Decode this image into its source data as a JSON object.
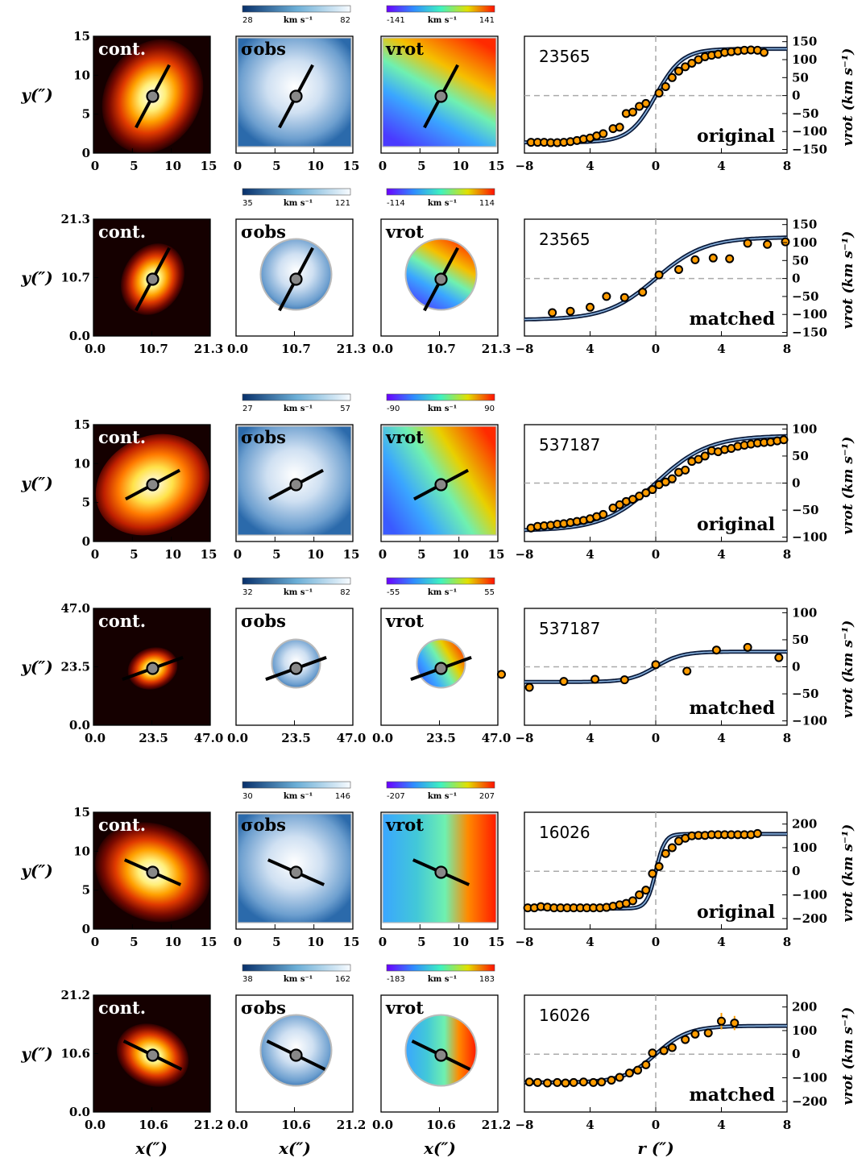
{
  "chart_data": [
    {
      "type": "scatter",
      "galaxy_id": "23565",
      "state": "original",
      "maps": {
        "continuum_label": "cont.",
        "dispersion_label": "σobs",
        "velocity_label": "vrot",
        "ticks": [
          "0",
          "5",
          "10",
          "15"
        ],
        "y_ticks": [
          "0",
          "5",
          "10",
          "15"
        ],
        "extent": [
          0,
          15
        ],
        "ylabel": "y(″)",
        "sigma_cbar": {
          "min": "28",
          "max": "82",
          "unit": "km s⁻¹"
        },
        "vrot_cbar": {
          "min": "-141",
          "max": "141",
          "unit": "km s⁻¹"
        }
      },
      "rotation_curve": {
        "xlim": [
          -8,
          8
        ],
        "x_ticks": [
          "−8",
          "4",
          "0",
          "4",
          "8"
        ],
        "ylim": [
          -160,
          165
        ],
        "y_ticks": [
          {
            "v": 150,
            "t": "150"
          },
          {
            "v": 100,
            "t": "100"
          },
          {
            "v": 50,
            "t": "50"
          },
          {
            "v": 0,
            "t": "0"
          },
          {
            "v": -50,
            "t": "−50"
          },
          {
            "v": -100,
            "t": "−100"
          },
          {
            "v": -150,
            "t": "−150"
          }
        ],
        "ylabel": "vrot (km s⁻¹)",
        "model_vmax": 130,
        "model_scale": 1.6,
        "points": [
          [
            -7.6,
            -130
          ],
          [
            -7.2,
            -130
          ],
          [
            -6.8,
            -130
          ],
          [
            -6.4,
            -131
          ],
          [
            -6.0,
            -131
          ],
          [
            -5.6,
            -130
          ],
          [
            -5.2,
            -128
          ],
          [
            -4.8,
            -125
          ],
          [
            -4.4,
            -121
          ],
          [
            -4.0,
            -118
          ],
          [
            -3.6,
            -112
          ],
          [
            -3.2,
            -106
          ],
          [
            -2.6,
            -92
          ],
          [
            -2.2,
            -88
          ],
          [
            -1.8,
            -50
          ],
          [
            -1.4,
            -46
          ],
          [
            -1.0,
            -30
          ],
          [
            -0.6,
            -22
          ],
          [
            0.2,
            7
          ],
          [
            0.6,
            25
          ],
          [
            1.0,
            50
          ],
          [
            1.4,
            68
          ],
          [
            1.8,
            80
          ],
          [
            2.2,
            90
          ],
          [
            2.6,
            100
          ],
          [
            3.0,
            108
          ],
          [
            3.4,
            112
          ],
          [
            3.8,
            115
          ],
          [
            4.2,
            120
          ],
          [
            4.6,
            122
          ],
          [
            5.0,
            124
          ],
          [
            5.4,
            126
          ],
          [
            5.8,
            127
          ],
          [
            6.2,
            126
          ],
          [
            6.6,
            120
          ]
        ]
      }
    },
    {
      "type": "scatter",
      "galaxy_id": "23565",
      "state": "matched",
      "maps": {
        "continuum_label": "cont.",
        "dispersion_label": "σobs",
        "velocity_label": "vrot",
        "ticks": [
          "0.0",
          "10.7",
          "21.3"
        ],
        "y_ticks": [
          "0.0",
          "10.7",
          "21.3"
        ],
        "extent": [
          0,
          21.3
        ],
        "ylabel": "y(″)",
        "sigma_cbar": {
          "min": "35",
          "max": "121",
          "unit": "km s⁻¹"
        },
        "vrot_cbar": {
          "min": "-114",
          "max": "114",
          "unit": "km s⁻¹"
        }
      },
      "rotation_curve": {
        "xlim": [
          -8,
          8
        ],
        "x_ticks": [
          "−8",
          "4",
          "0",
          "4",
          "8"
        ],
        "ylim": [
          -160,
          165
        ],
        "y_ticks": [
          {
            "v": 150,
            "t": "150"
          },
          {
            "v": 100,
            "t": "100"
          },
          {
            "v": 50,
            "t": "50"
          },
          {
            "v": 0,
            "t": "0"
          },
          {
            "v": -50,
            "t": "−50"
          },
          {
            "v": -100,
            "t": "−100"
          },
          {
            "v": -150,
            "t": "−150"
          }
        ],
        "ylabel": "vrot (km s⁻¹)",
        "model_vmax": 115,
        "model_scale": 3.0,
        "points": [
          [
            -6.3,
            -95
          ],
          [
            -5.2,
            -91
          ],
          [
            -4.0,
            -80
          ],
          [
            -3.0,
            -50
          ],
          [
            -1.9,
            -53
          ],
          [
            -0.8,
            -38
          ],
          [
            0.2,
            10
          ],
          [
            1.4,
            25
          ],
          [
            2.4,
            52
          ],
          [
            3.5,
            57
          ],
          [
            4.5,
            55
          ],
          [
            5.6,
            98
          ],
          [
            6.8,
            95
          ],
          [
            7.9,
            102
          ]
        ]
      }
    },
    {
      "type": "scatter",
      "galaxy_id": "537187",
      "state": "original",
      "maps": {
        "continuum_label": "cont.",
        "dispersion_label": "σobs",
        "velocity_label": "vrot",
        "ticks": [
          "0",
          "5",
          "10",
          "15"
        ],
        "y_ticks": [
          "0",
          "5",
          "10",
          "15"
        ],
        "extent": [
          0,
          15
        ],
        "ylabel": "y(″)",
        "sigma_cbar": {
          "min": "27",
          "max": "57",
          "unit": "km s⁻¹"
        },
        "vrot_cbar": {
          "min": "-90",
          "max": "90",
          "unit": "km s⁻¹"
        }
      },
      "rotation_curve": {
        "xlim": [
          -8,
          8
        ],
        "x_ticks": [
          "−8",
          "4",
          "0",
          "4",
          "8"
        ],
        "ylim": [
          -108,
          108
        ],
        "y_ticks": [
          {
            "v": 100,
            "t": "100"
          },
          {
            "v": 50,
            "t": "50"
          },
          {
            "v": 0,
            "t": "0"
          },
          {
            "v": -50,
            "t": "−50"
          },
          {
            "v": -100,
            "t": "−100"
          }
        ],
        "ylabel": "vrot (km s⁻¹)",
        "model_vmax": 88,
        "model_scale": 3.2,
        "points": [
          [
            -7.6,
            -83
          ],
          [
            -7.2,
            -80
          ],
          [
            -6.8,
            -79
          ],
          [
            -6.4,
            -78
          ],
          [
            -6.0,
            -76
          ],
          [
            -5.6,
            -75
          ],
          [
            -5.2,
            -73
          ],
          [
            -4.8,
            -71
          ],
          [
            -4.4,
            -69
          ],
          [
            -4.0,
            -66
          ],
          [
            -3.6,
            -62
          ],
          [
            -3.2,
            -58
          ],
          [
            -2.6,
            -46
          ],
          [
            -2.2,
            -40
          ],
          [
            -1.8,
            -34
          ],
          [
            -1.4,
            -30
          ],
          [
            -1.0,
            -24
          ],
          [
            -0.6,
            -18
          ],
          [
            -0.2,
            -12
          ],
          [
            0.2,
            -3
          ],
          [
            0.6,
            2
          ],
          [
            1.0,
            8
          ],
          [
            1.4,
            20
          ],
          [
            1.8,
            24
          ],
          [
            2.2,
            40
          ],
          [
            2.6,
            44
          ],
          [
            3.0,
            50
          ],
          [
            3.4,
            60
          ],
          [
            3.8,
            58
          ],
          [
            4.2,
            62
          ],
          [
            4.6,
            64
          ],
          [
            5.0,
            68
          ],
          [
            5.4,
            70
          ],
          [
            5.8,
            72
          ],
          [
            6.2,
            74
          ],
          [
            6.6,
            75
          ],
          [
            7.0,
            76
          ],
          [
            7.4,
            78
          ],
          [
            7.8,
            80
          ]
        ]
      }
    },
    {
      "type": "scatter",
      "galaxy_id": "537187",
      "state": "matched",
      "maps": {
        "continuum_label": "cont.",
        "dispersion_label": "σobs",
        "velocity_label": "vrot",
        "ticks": [
          "0.0",
          "23.5",
          "47.0"
        ],
        "y_ticks": [
          "0.0",
          "23.5",
          "47.0"
        ],
        "extent": [
          0,
          47.0
        ],
        "ylabel": "y(″)",
        "sigma_cbar": {
          "min": "32",
          "max": "82",
          "unit": "km s⁻¹"
        },
        "vrot_cbar": {
          "min": "-55",
          "max": "55",
          "unit": "km s⁻¹"
        }
      },
      "rotation_curve": {
        "xlim": [
          -8,
          8
        ],
        "x_ticks": [
          "−8",
          "4",
          "0",
          "4",
          "8"
        ],
        "ylim": [
          -108,
          108
        ],
        "y_ticks": [
          {
            "v": 100,
            "t": "100"
          },
          {
            "v": 50,
            "t": "50"
          },
          {
            "v": 0,
            "t": "0"
          },
          {
            "v": -50,
            "t": "−50"
          },
          {
            "v": -100,
            "t": "−100"
          }
        ],
        "ylabel": "vrot (km s⁻¹)",
        "model_vmax": 28,
        "model_scale": 1.6,
        "points": [
          [
            -9.4,
            -14
          ],
          [
            -7.7,
            -38
          ],
          [
            -5.6,
            -27
          ],
          [
            -3.7,
            -23
          ],
          [
            -1.9,
            -24
          ],
          [
            0.0,
            4
          ],
          [
            1.9,
            -8
          ],
          [
            3.7,
            31
          ],
          [
            5.6,
            36
          ],
          [
            7.5,
            17
          ]
        ]
      }
    },
    {
      "type": "scatter",
      "galaxy_id": "16026",
      "state": "original",
      "maps": {
        "continuum_label": "cont.",
        "dispersion_label": "σobs",
        "velocity_label": "vrot",
        "ticks": [
          "0",
          "5",
          "10",
          "15"
        ],
        "y_ticks": [
          "0",
          "5",
          "10",
          "15"
        ],
        "extent": [
          0,
          15
        ],
        "ylabel": "y(″)",
        "sigma_cbar": {
          "min": "30",
          "max": "146",
          "unit": "km s⁻¹"
        },
        "vrot_cbar": {
          "min": "-207",
          "max": "207",
          "unit": "km s⁻¹"
        }
      },
      "rotation_curve": {
        "xlim": [
          -8,
          8
        ],
        "x_ticks": [
          "−8",
          "4",
          "0",
          "4",
          "8"
        ],
        "ylim": [
          -245,
          250
        ],
        "y_ticks": [
          {
            "v": 200,
            "t": "200"
          },
          {
            "v": 100,
            "t": "100"
          },
          {
            "v": 0,
            "t": "0"
          },
          {
            "v": -100,
            "t": "−100"
          },
          {
            "v": -200,
            "t": "−200"
          }
        ],
        "ylabel": "vrot (km s⁻¹)",
        "model_vmax": 158,
        "model_scale": 0.55,
        "points": [
          [
            -7.8,
            -155
          ],
          [
            -7.4,
            -155
          ],
          [
            -7.0,
            -150
          ],
          [
            -6.6,
            -152
          ],
          [
            -6.2,
            -155
          ],
          [
            -5.8,
            -155
          ],
          [
            -5.4,
            -155
          ],
          [
            -5.0,
            -155
          ],
          [
            -4.6,
            -155
          ],
          [
            -4.2,
            -155
          ],
          [
            -3.8,
            -155
          ],
          [
            -3.4,
            -155
          ],
          [
            -3.0,
            -153
          ],
          [
            -2.6,
            -148
          ],
          [
            -2.2,
            -142
          ],
          [
            -1.8,
            -136
          ],
          [
            -1.4,
            -125
          ],
          [
            -1.0,
            -100
          ],
          [
            -0.6,
            -80
          ],
          [
            -0.2,
            -10
          ],
          [
            0.2,
            20
          ],
          [
            0.6,
            75
          ],
          [
            1.0,
            100
          ],
          [
            1.4,
            128
          ],
          [
            1.8,
            140
          ],
          [
            2.2,
            150
          ],
          [
            2.6,
            152
          ],
          [
            3.0,
            152
          ],
          [
            3.4,
            155
          ],
          [
            3.8,
            155
          ],
          [
            4.2,
            155
          ],
          [
            4.6,
            155
          ],
          [
            5.0,
            155
          ],
          [
            5.4,
            155
          ],
          [
            5.8,
            155
          ],
          [
            6.2,
            160
          ]
        ]
      }
    },
    {
      "type": "scatter",
      "galaxy_id": "16026",
      "state": "matched",
      "maps": {
        "continuum_label": "cont.",
        "dispersion_label": "σobs",
        "velocity_label": "vrot",
        "ticks": [
          "0.0",
          "10.6",
          "21.2"
        ],
        "y_ticks": [
          "0.0",
          "10.6",
          "21.2"
        ],
        "extent": [
          0,
          21.2
        ],
        "ylabel": "y(″)",
        "sigma_cbar": {
          "min": "38",
          "max": "162",
          "unit": "km s⁻¹"
        },
        "vrot_cbar": {
          "min": "-183",
          "max": "183",
          "unit": "km s⁻¹"
        }
      },
      "rotation_curve": {
        "xlim": [
          -8,
          8
        ],
        "x_ticks": [
          "−8",
          "4",
          "0",
          "4",
          "8"
        ],
        "ylim": [
          -245,
          250
        ],
        "y_ticks": [
          {
            "v": 200,
            "t": "200"
          },
          {
            "v": 100,
            "t": "100"
          },
          {
            "v": 0,
            "t": "0"
          },
          {
            "v": -100,
            "t": "−100"
          },
          {
            "v": -200,
            "t": "−200"
          }
        ],
        "ylabel": "vrot (km s⁻¹)",
        "model_vmax": 120,
        "model_scale": 2.0,
        "points": [
          [
            -7.7,
            -118
          ],
          [
            -7.2,
            -120
          ],
          [
            -6.6,
            -122
          ],
          [
            -6.0,
            -120
          ],
          [
            -5.5,
            -122
          ],
          [
            -5.0,
            -120
          ],
          [
            -4.4,
            -118
          ],
          [
            -3.8,
            -120
          ],
          [
            -3.3,
            -118
          ],
          [
            -2.7,
            -110
          ],
          [
            -2.2,
            -98
          ],
          [
            -1.6,
            -80
          ],
          [
            -1.1,
            -68
          ],
          [
            -0.6,
            -45
          ],
          [
            -0.2,
            5
          ],
          [
            0.5,
            15
          ],
          [
            1.0,
            28
          ],
          [
            1.8,
            62
          ],
          [
            2.4,
            85
          ],
          [
            3.2,
            90
          ],
          [
            4.0,
            140
          ],
          [
            4.8,
            132
          ]
        ],
        "error_points": [
          [
            1.8,
            62,
            15
          ],
          [
            4.0,
            140,
            35
          ],
          [
            4.8,
            132,
            30
          ]
        ]
      }
    }
  ],
  "axis_labels": {
    "x_maps": "x(″)",
    "x_curve": "r (″)"
  }
}
